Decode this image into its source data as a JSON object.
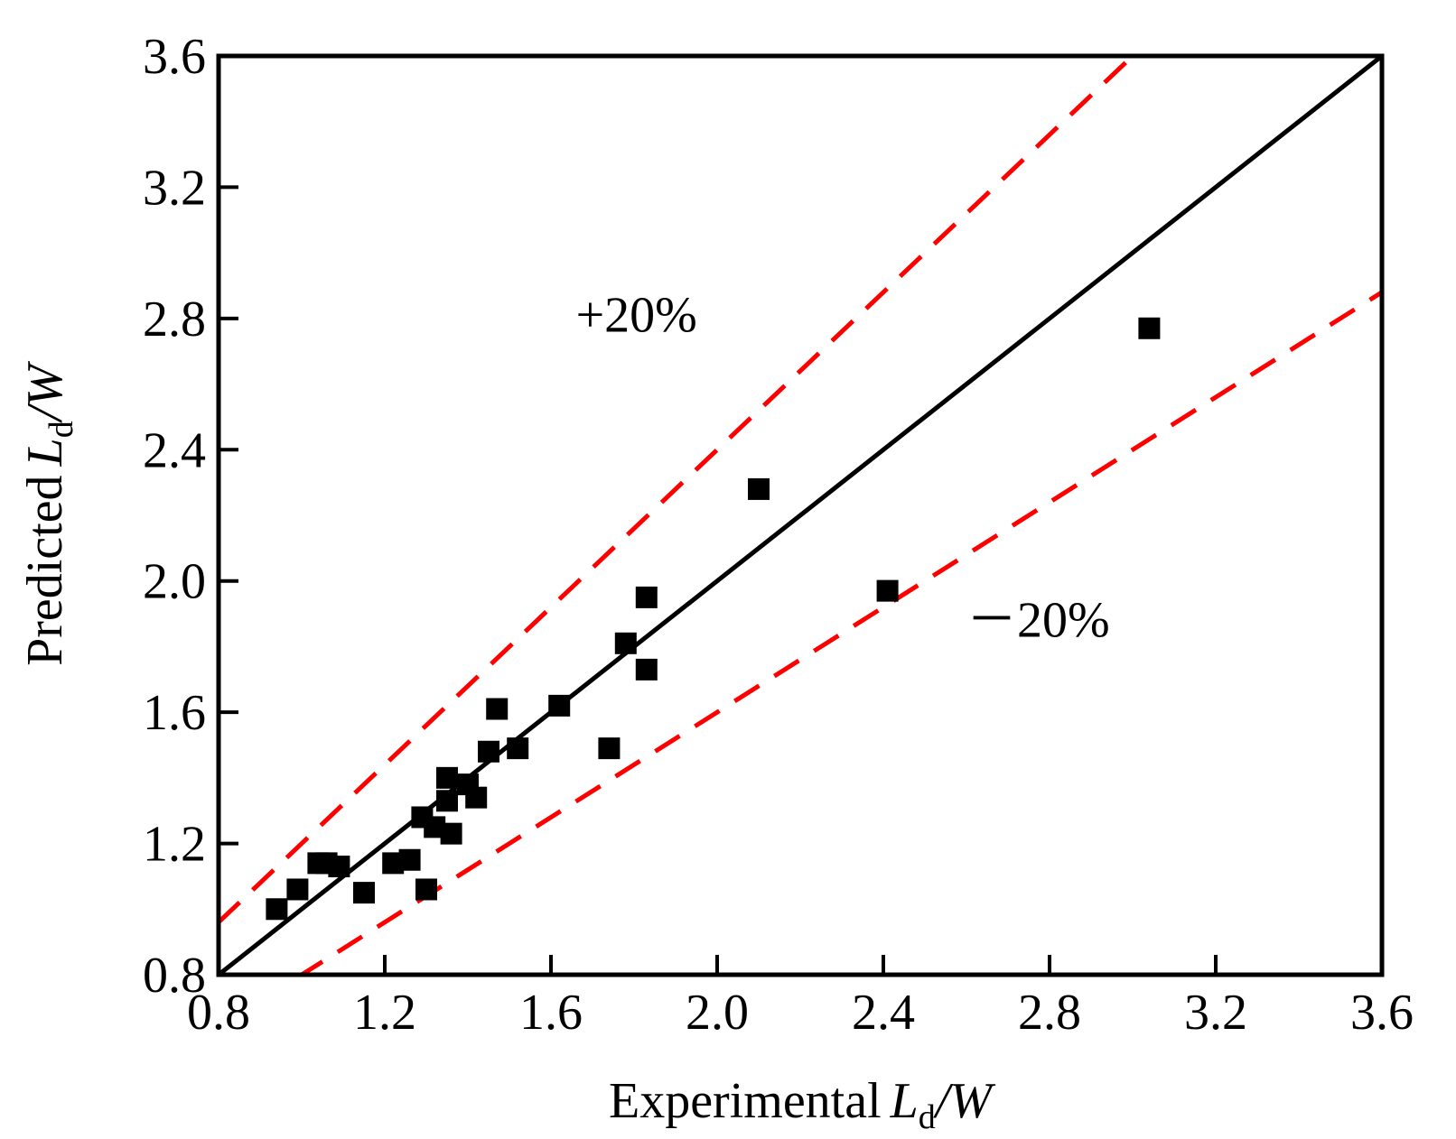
{
  "chart_data": {
    "type": "scatter",
    "title": "",
    "xlabel": {
      "prefix": "Experimental",
      "var": "L",
      "sub": "d",
      "suffix": "/",
      "var2": "W"
    },
    "ylabel": {
      "prefix": "Predicted",
      "var": "L",
      "sub": "d",
      "suffix": "/",
      "var2": "W"
    },
    "xlim": [
      0.8,
      3.6
    ],
    "ylim": [
      0.8,
      3.6
    ],
    "xticks": [
      "0.8",
      "1.2",
      "1.6",
      "2.0",
      "2.4",
      "2.8",
      "3.2",
      "3.6"
    ],
    "yticks": [
      "0.8",
      "1.2",
      "1.6",
      "2.0",
      "2.4",
      "2.8",
      "3.2",
      "3.6"
    ],
    "grid": false,
    "series": [
      {
        "name": "data",
        "marker": "square",
        "color": "#000000",
        "points": [
          [
            0.94,
            1.0
          ],
          [
            0.99,
            1.06
          ],
          [
            1.04,
            1.14
          ],
          [
            1.06,
            1.14
          ],
          [
            1.09,
            1.13
          ],
          [
            1.15,
            1.05
          ],
          [
            1.22,
            1.14
          ],
          [
            1.26,
            1.15
          ],
          [
            1.29,
            1.28
          ],
          [
            1.3,
            1.06
          ],
          [
            1.32,
            1.25
          ],
          [
            1.35,
            1.4
          ],
          [
            1.35,
            1.33
          ],
          [
            1.36,
            1.23
          ],
          [
            1.4,
            1.38
          ],
          [
            1.42,
            1.34
          ],
          [
            1.45,
            1.48
          ],
          [
            1.47,
            1.61
          ],
          [
            1.52,
            1.49
          ],
          [
            1.62,
            1.62
          ],
          [
            1.74,
            1.49
          ],
          [
            1.78,
            1.81
          ],
          [
            1.83,
            1.73
          ],
          [
            1.83,
            1.95
          ],
          [
            2.1,
            2.28
          ],
          [
            2.41,
            1.97
          ],
          [
            3.04,
            2.77
          ]
        ]
      }
    ],
    "reference_lines": [
      {
        "name": "y = x",
        "style": "solid",
        "color": "#000000",
        "slope": 1.0
      },
      {
        "name": "+20%",
        "style": "dashed",
        "color": "#ff0000",
        "slope": 1.2
      },
      {
        "name": "-20%",
        "style": "dashed",
        "color": "#ff0000",
        "slope": 0.8
      }
    ],
    "annotations": [
      {
        "text": "+20%",
        "x": 1.66,
        "y": 2.76
      },
      {
        "text": "－20%",
        "x": 2.6,
        "y": 1.83
      }
    ]
  }
}
